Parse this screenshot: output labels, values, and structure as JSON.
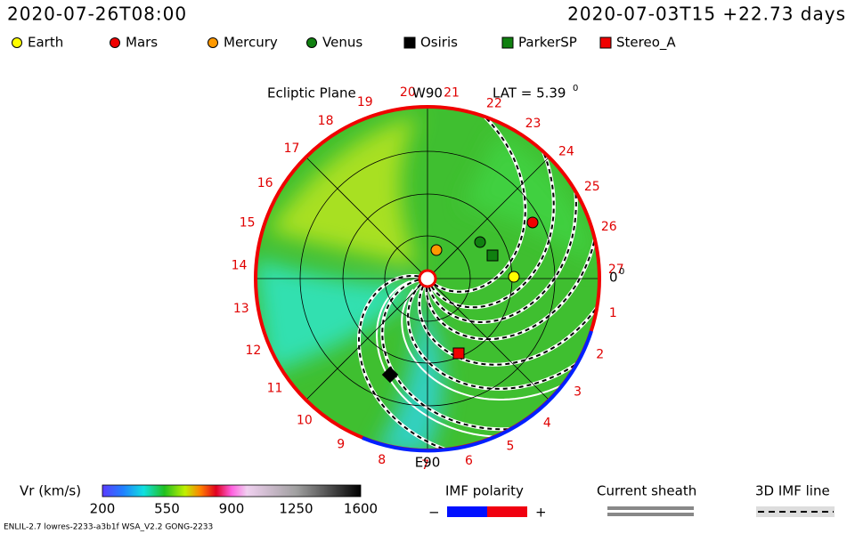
{
  "header": {
    "run_time": "2020-07-26T08:00",
    "frame_time": "2020-07-03T15 +22.73 days"
  },
  "legend": [
    "Earth",
    "Mars",
    "Mercury",
    "Venus",
    "Osiris",
    "ParkerSP",
    "Stereo_A"
  ],
  "plot": {
    "title": "Ecliptic Plane",
    "top_label": "W90",
    "bottom_label": "E90",
    "lat": "LAT = 5.39",
    "lat_unit": "0",
    "zero_label": "0",
    "zero_unit": "0",
    "longitudes": [
      "1",
      "2",
      "3",
      "4",
      "5",
      "6",
      "7",
      "8",
      "9",
      "10",
      "11",
      "12",
      "13",
      "14",
      "15",
      "16",
      "17",
      "18",
      "19",
      "20",
      "21",
      "22",
      "23",
      "24",
      "25",
      "26",
      "27"
    ]
  },
  "colorbar": {
    "label": "Vr (km/s)",
    "ticks": [
      "200",
      "550",
      "900",
      "1250",
      "1600"
    ]
  },
  "imf": {
    "label": "IMF polarity",
    "minus": "−",
    "plus": "+"
  },
  "sheath": {
    "label": "Current sheath"
  },
  "imf_line": {
    "label": "3D IMF line"
  },
  "footer": "ENLIL-2.7 lowres-2233-a3b1f WSA_V2.2 GONG-2233"
}
